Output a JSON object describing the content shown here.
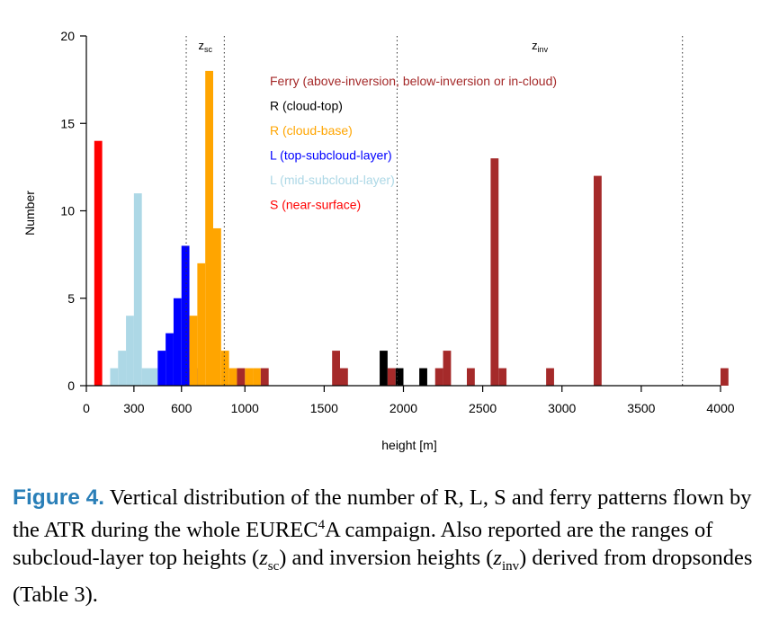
{
  "chart_data": {
    "type": "bar",
    "xlabel": "height [m]",
    "ylabel": "Number",
    "xlim": [
      0,
      4050
    ],
    "ylim": [
      0,
      20
    ],
    "xticks": [
      0,
      300,
      600,
      1000,
      1500,
      2000,
      2500,
      3000,
      3500,
      4000
    ],
    "yticks": [
      0,
      5,
      10,
      15,
      20
    ],
    "bin_width": 50,
    "legend_position": "top-center",
    "series": [
      {
        "name": "S (near-surface)",
        "color": "#ff0000",
        "bins": [
          {
            "x0": 50,
            "x1": 100,
            "count": 14
          }
        ]
      },
      {
        "name": "L (mid-subcloud-layer)",
        "color": "#add8e6",
        "bins": [
          {
            "x0": 150,
            "x1": 200,
            "count": 1
          },
          {
            "x0": 200,
            "x1": 250,
            "count": 2
          },
          {
            "x0": 250,
            "x1": 300,
            "count": 4
          },
          {
            "x0": 300,
            "x1": 350,
            "count": 11
          },
          {
            "x0": 350,
            "x1": 400,
            "count": 1
          },
          {
            "x0": 400,
            "x1": 450,
            "count": 1
          }
        ]
      },
      {
        "name": "L (top-subcloud-layer)",
        "color": "#0000ff",
        "bins": [
          {
            "x0": 450,
            "x1": 500,
            "count": 2
          },
          {
            "x0": 500,
            "x1": 550,
            "count": 3
          },
          {
            "x0": 550,
            "x1": 600,
            "count": 5
          },
          {
            "x0": 600,
            "x1": 650,
            "count": 8
          },
          {
            "x0": 650,
            "x1": 700,
            "count": 1
          }
        ]
      },
      {
        "name": "R (cloud-base)",
        "color": "#ffa500",
        "bins": [
          {
            "x0": 650,
            "x1": 700,
            "count": 4
          },
          {
            "x0": 700,
            "x1": 750,
            "count": 7
          },
          {
            "x0": 750,
            "x1": 800,
            "count": 18
          },
          {
            "x0": 800,
            "x1": 850,
            "count": 9
          },
          {
            "x0": 850,
            "x1": 900,
            "count": 2
          },
          {
            "x0": 900,
            "x1": 950,
            "count": 1
          },
          {
            "x0": 1000,
            "x1": 1050,
            "count": 1
          },
          {
            "x0": 1050,
            "x1": 1100,
            "count": 1
          }
        ]
      },
      {
        "name": "R (cloud-top)",
        "color": "#000000",
        "bins": [
          {
            "x0": 1850,
            "x1": 1900,
            "count": 2
          },
          {
            "x0": 1950,
            "x1": 2000,
            "count": 1
          },
          {
            "x0": 2100,
            "x1": 2150,
            "count": 1
          }
        ]
      },
      {
        "name": "Ferry (above-inversion, below-inversion or in-cloud)",
        "color": "#a52a2a",
        "bins": [
          {
            "x0": 950,
            "x1": 1000,
            "count": 1
          },
          {
            "x0": 1100,
            "x1": 1150,
            "count": 1
          },
          {
            "x0": 1550,
            "x1": 1600,
            "count": 2
          },
          {
            "x0": 1600,
            "x1": 1650,
            "count": 1
          },
          {
            "x0": 1900,
            "x1": 1950,
            "count": 1
          },
          {
            "x0": 2200,
            "x1": 2250,
            "count": 1
          },
          {
            "x0": 2250,
            "x1": 2300,
            "count": 2
          },
          {
            "x0": 2400,
            "x1": 2450,
            "count": 1
          },
          {
            "x0": 2550,
            "x1": 2600,
            "count": 13
          },
          {
            "x0": 2600,
            "x1": 2650,
            "count": 1
          },
          {
            "x0": 2900,
            "x1": 2950,
            "count": 1
          },
          {
            "x0": 3200,
            "x1": 3250,
            "count": 12
          },
          {
            "x0": 4000,
            "x1": 4050,
            "count": 1
          }
        ]
      }
    ],
    "legend_order": [
      5,
      4,
      3,
      2,
      1,
      0
    ],
    "ranges": [
      {
        "symbol": "z",
        "sub": "sc",
        "from": 630,
        "to": 870
      },
      {
        "symbol": "z",
        "sub": "inv",
        "from": 1960,
        "to": 3760
      }
    ]
  },
  "caption": {
    "label": "Figure 4.",
    "text1": " Vertical distribution of the number of R, L, S and ferry patterns flown by the ATR during the whole EUREC",
    "sup4": "4",
    "text2": "A campaign. Also reported are the ranges of subcloud-layer top heights (",
    "z1": "z",
    "sub1": "sc",
    "text3": ") and inversion heights (",
    "z2": "z",
    "sub2": "inv",
    "text4": ") derived from dropsondes (Table 3)."
  }
}
